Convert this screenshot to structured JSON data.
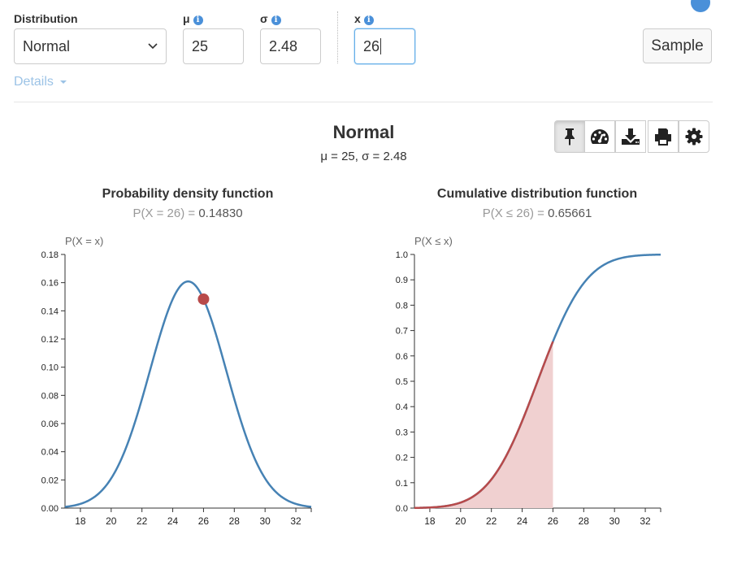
{
  "form": {
    "distribution": {
      "label": "Distribution",
      "value": "Normal"
    },
    "mu": {
      "label": "μ",
      "value": "25"
    },
    "sigma": {
      "label": "σ",
      "value": "2.48"
    },
    "x": {
      "label": "x",
      "value": "26"
    },
    "info_icon": "i",
    "sample_button": "Sample",
    "details_link": "Details"
  },
  "header": {
    "title": "Normal",
    "subtitle": "μ = 25, σ = 2.48"
  },
  "toolbar": {
    "buttons": [
      "pin-icon",
      "dashboard-icon",
      "download-icon",
      "print-icon",
      "gear-icon"
    ]
  },
  "pdf": {
    "title": "Probability density function",
    "prob_label": "P(X = 26) =",
    "prob_value": "0.14830",
    "y_axis_label": "P(X = x)"
  },
  "cdf": {
    "title": "Cumulative distribution function",
    "prob_label": "P(X ≤ 26) =",
    "prob_value": "0.65661",
    "y_axis_label": "P(X ≤ x)"
  },
  "colors": {
    "curve": "#4682b4",
    "highlight": "#b84a4a",
    "area_fill": "#f0d0d0",
    "accent": "#4a90d9"
  },
  "chart_data": [
    {
      "type": "line",
      "title": "Probability density function",
      "ylabel": "P(X = x)",
      "xlim": [
        17,
        33
      ],
      "ylim": [
        0,
        0.18
      ],
      "x_ticks": [
        18,
        20,
        22,
        24,
        26,
        28,
        30,
        32
      ],
      "y_ticks": [
        "0.00",
        "0.02",
        "0.04",
        "0.06",
        "0.08",
        "0.10",
        "0.12",
        "0.14",
        "0.16",
        "0.18"
      ],
      "series": [
        {
          "distribution": "normal",
          "mu": 25,
          "sigma": 2.48
        }
      ],
      "highlight_point": {
        "x": 26,
        "y": 0.1483
      }
    },
    {
      "type": "area",
      "title": "Cumulative distribution function",
      "ylabel": "P(X ≤ x)",
      "xlim": [
        17,
        33
      ],
      "ylim": [
        0,
        1
      ],
      "x_ticks": [
        18,
        20,
        22,
        24,
        26,
        28,
        30,
        32
      ],
      "y_ticks": [
        "0.0",
        "0.1",
        "0.2",
        "0.3",
        "0.4",
        "0.5",
        "0.6",
        "0.7",
        "0.8",
        "0.9",
        "1.0"
      ],
      "series": [
        {
          "distribution": "normal",
          "mu": 25,
          "sigma": 2.48
        }
      ],
      "shaded_region": {
        "x_from": 17,
        "x_to": 26,
        "value_at_end": 0.65661
      }
    }
  ]
}
